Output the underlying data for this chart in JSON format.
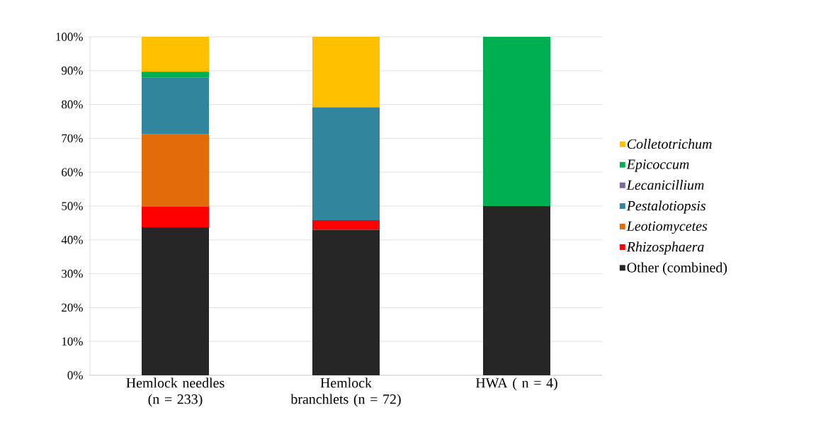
{
  "chart_data": {
    "type": "bar",
    "stacked": true,
    "categories": [
      "Hemlock needles (n = 233)",
      "Hemlock branchlets (n = 72)",
      "HWA ( n = 4)"
    ],
    "series": [
      {
        "name": "Other (combined)",
        "color": "#262626",
        "values": [
          43.7,
          43.0,
          50
        ]
      },
      {
        "name": "*Rhizosphaera*",
        "color": "#ff0000",
        "values": [
          6.1,
          2.8,
          0
        ]
      },
      {
        "name": "*Leotiomycetes*",
        "color": "#e36c0a",
        "values": [
          21.4,
          0,
          0
        ]
      },
      {
        "name": "*Pestalotiopsis*",
        "color": "#31859c",
        "values": [
          16.8,
          33.4,
          0
        ]
      },
      {
        "name": "*Lecanicillium*",
        "color": "#8064a2",
        "values": [
          0,
          0,
          0
        ]
      },
      {
        "name": "*Epicoccum*",
        "color": "#00b050",
        "values": [
          1.7,
          0,
          50
        ]
      },
      {
        "name": "*Colletotrichum*",
        "color": "#ffc000",
        "values": [
          10.3,
          20.8,
          0
        ]
      }
    ],
    "ylim": [
      0,
      100
    ],
    "yticks": [
      {
        "value": 0,
        "label": "0%"
      },
      {
        "value": 10,
        "label": "10%"
      },
      {
        "value": 20,
        "label": "20%"
      },
      {
        "value": 30,
        "label": "30%"
      },
      {
        "value": 40,
        "label": "40%"
      },
      {
        "value": 50,
        "label": "50%"
      },
      {
        "value": 60,
        "label": "60%"
      },
      {
        "value": 70,
        "label": "70%"
      },
      {
        "value": 80,
        "label": "80%"
      },
      {
        "value": 90,
        "label": "90%"
      },
      {
        "value": 100,
        "label": "100%"
      }
    ],
    "grid": "y",
    "legend": "right"
  }
}
